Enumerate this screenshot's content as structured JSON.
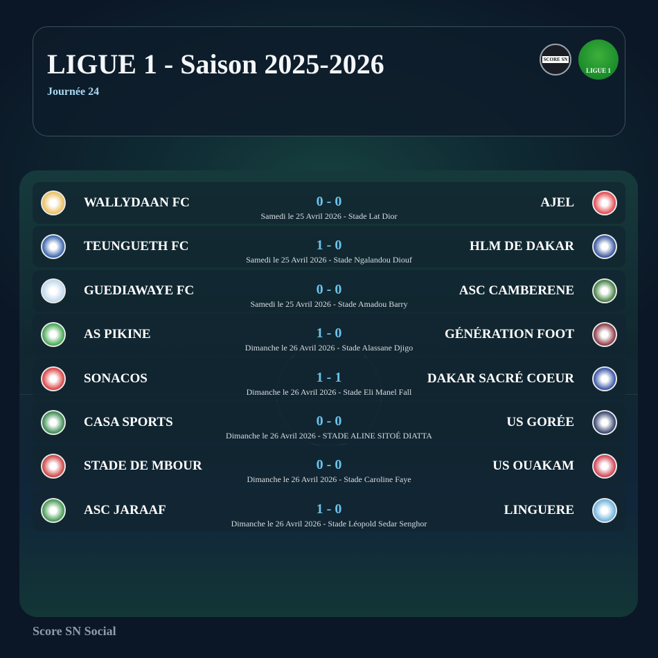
{
  "header": {
    "title": "LIGUE 1 - Saison 2025-2026",
    "journee": "Journée 24",
    "logos": [
      {
        "name": "Score SN",
        "text": "SCORE SN"
      },
      {
        "name": "Ligue 1",
        "text": "LIGUE 1"
      }
    ]
  },
  "matches": [
    {
      "home": "WALLYDAAN FC",
      "away": "AJEL",
      "score": "0 - 0",
      "info": "Samedi le 25 Avril 2026 - Stade Lat Dior",
      "home_color": "#e8b64a",
      "away_color": "#e0313a"
    },
    {
      "home": "TEUNGUETH FC",
      "away": "HLM DE DAKAR",
      "score": "1 - 0",
      "info": "Samedi le 25 Avril 2026 - Stade Ngalandou Diouf",
      "home_color": "#1d4fa0",
      "away_color": "#1c3f8f"
    },
    {
      "home": "GUEDIAWAYE FC",
      "away": "ASC CAMBERENE",
      "score": "0 - 0",
      "info": "Samedi le 25 Avril 2026 - Stade Amadou Barry",
      "home_color": "#b8d3ea",
      "away_color": "#2a6e2a"
    },
    {
      "home": "AS PIKINE",
      "away": "GÉNÉRATION FOOT",
      "score": "1 - 0",
      "info": "Dimanche le 26 Avril 2026 - Stade Alassane Djigo",
      "home_color": "#2a9a3a",
      "away_color": "#7a1e2c"
    },
    {
      "home": "SONACOS",
      "away": "DAKAR SACRÉ COEUR",
      "score": "1 - 1",
      "info": "Dimanche le 26 Avril 2026 - Stade Eli Manel Fall",
      "home_color": "#d42a2a",
      "away_color": "#1e3f9a"
    },
    {
      "home": "CASA SPORTS",
      "away": "US GORÉE",
      "score": "0 - 0",
      "info": "Dimanche le 26 Avril 2026 - STADE ALINE SITOÉ DIATTA",
      "home_color": "#1f7a3a",
      "away_color": "#1a2a5a"
    },
    {
      "home": "STADE DE MBOUR",
      "away": "US OUAKAM",
      "score": "0 - 0",
      "info": "Dimanche le 26 Avril 2026 - Stade Caroline Faye",
      "home_color": "#c52a2a",
      "away_color": "#c8283a"
    },
    {
      "home": "ASC JARAAF",
      "away": "LINGUERE",
      "score": "1 - 0",
      "info": "Dimanche le 26 Avril 2026 - Stade Léopold Sedar Senghor",
      "home_color": "#2a8a3a",
      "away_color": "#5aa8d8"
    }
  ],
  "footer": "Score SN Social"
}
